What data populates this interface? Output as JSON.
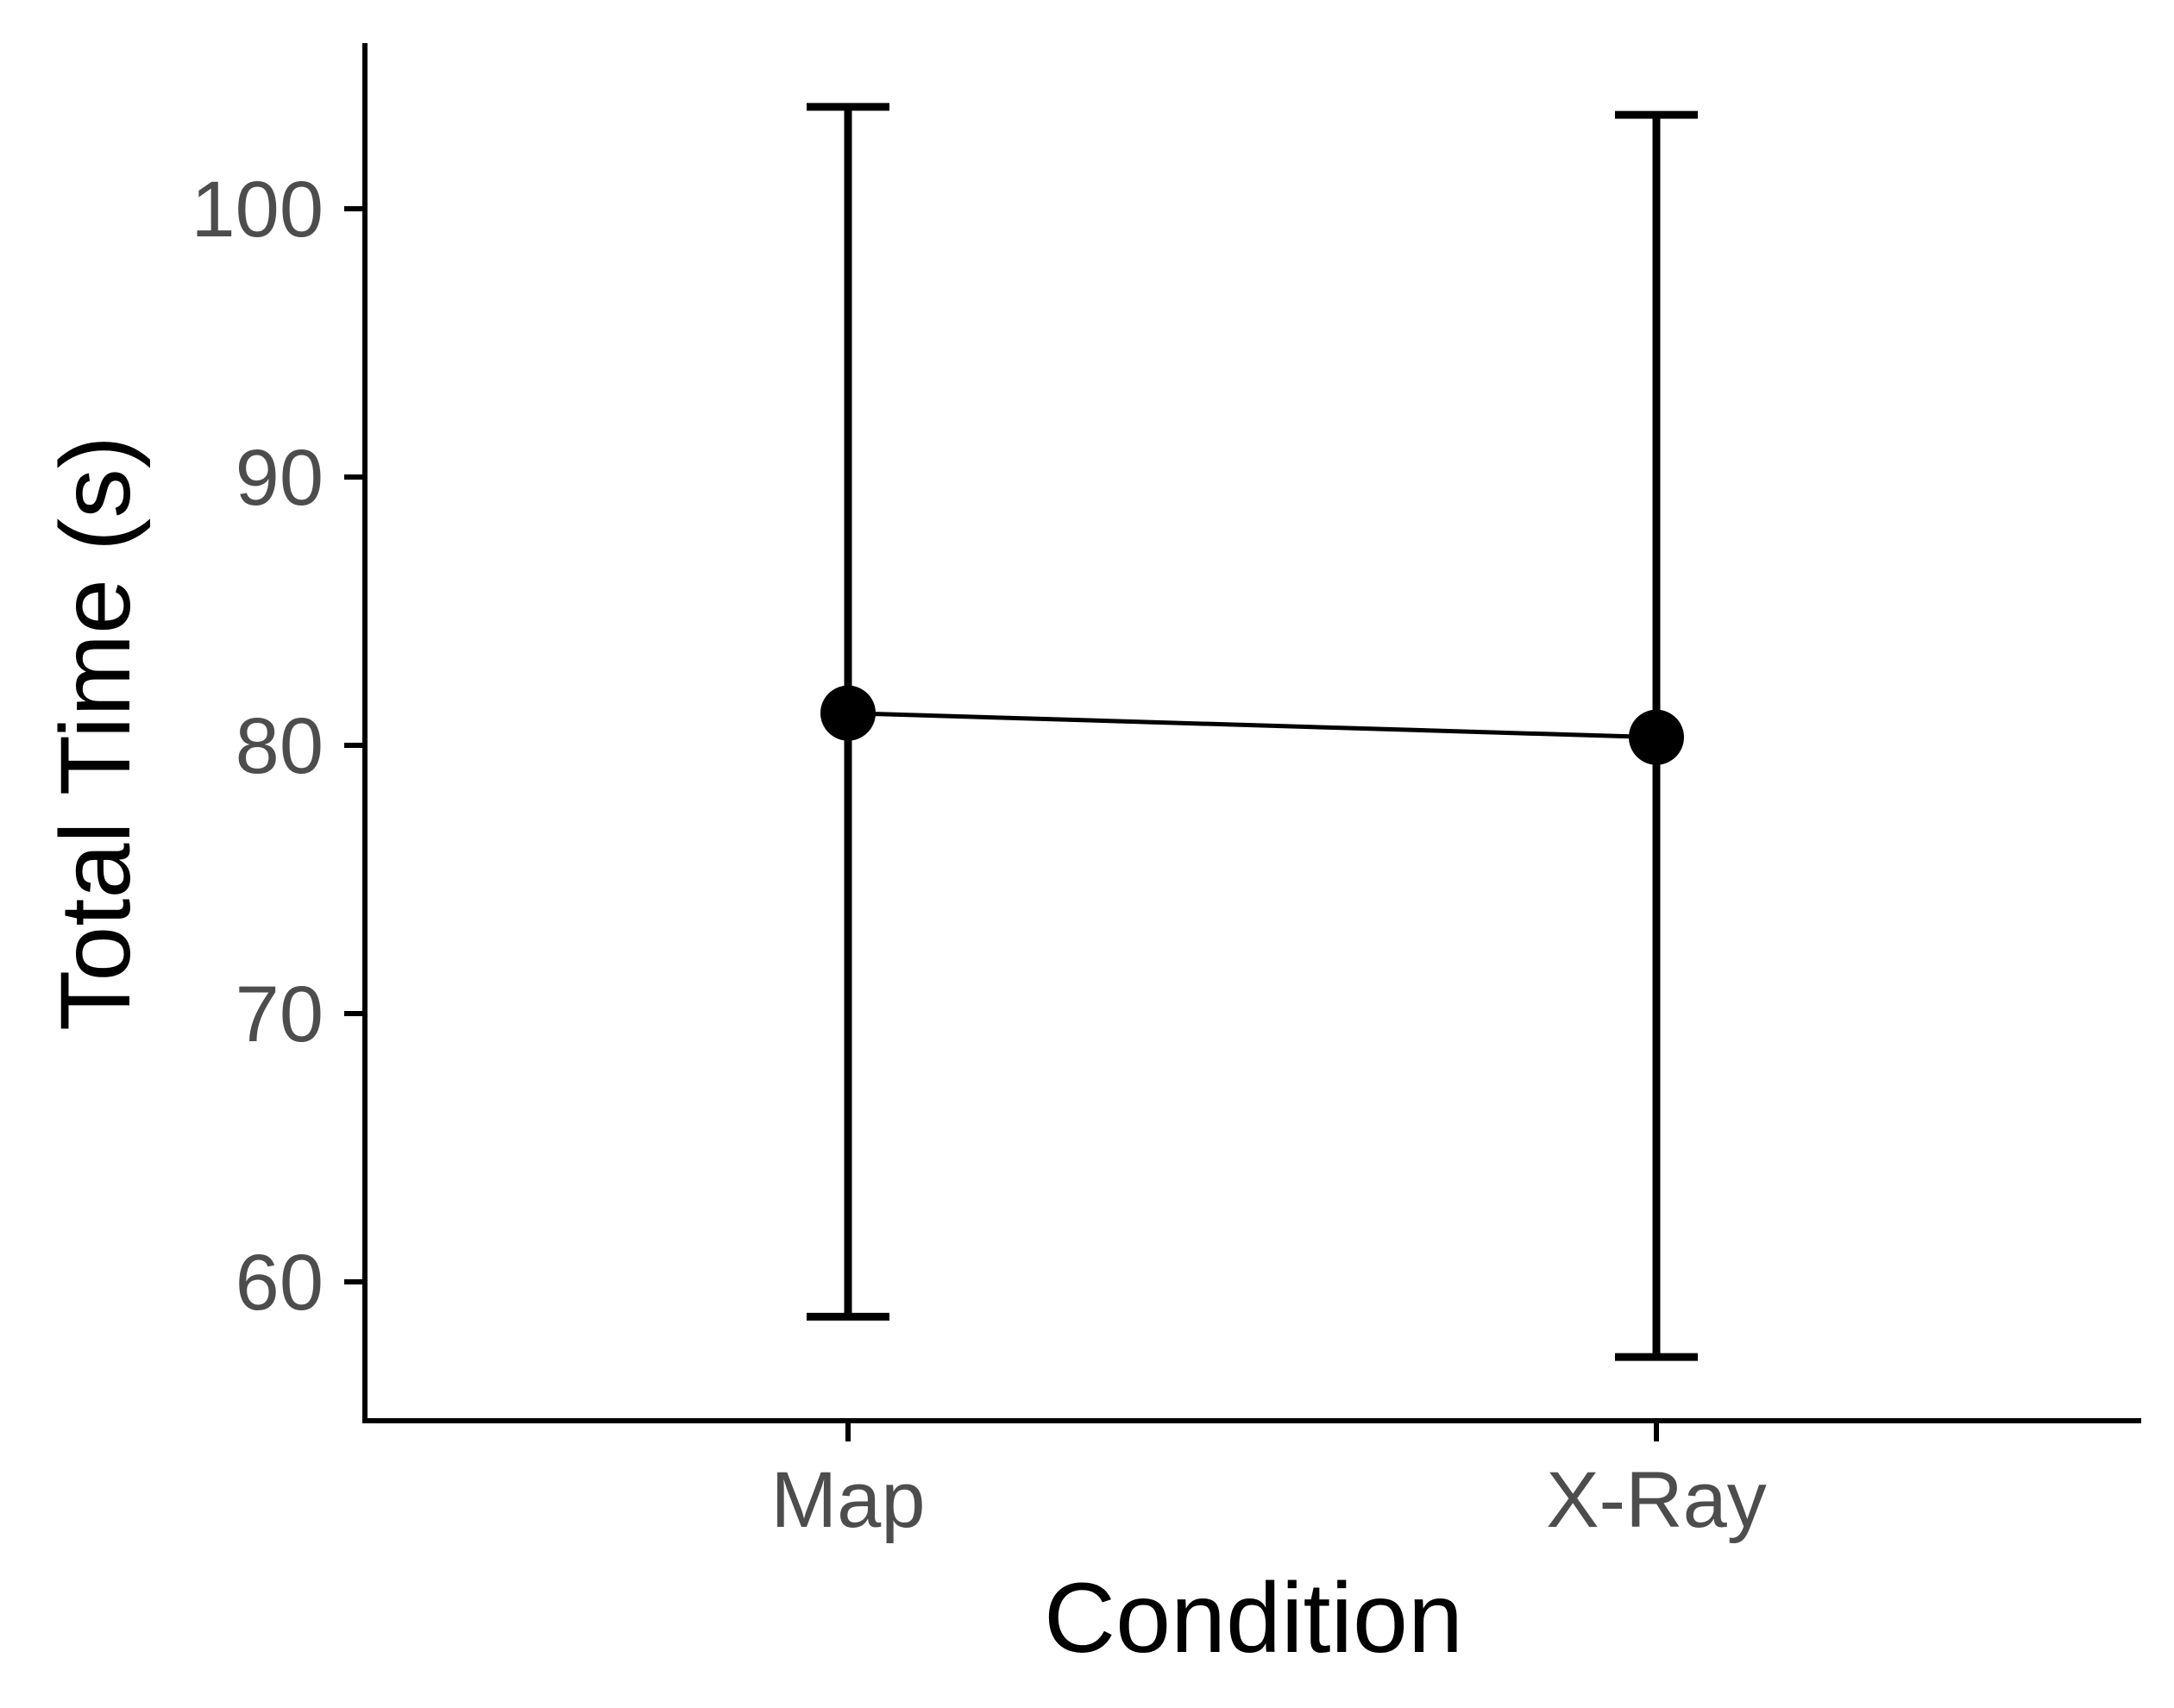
{
  "chart_data": {
    "type": "line",
    "title": "",
    "xlabel": "Condition",
    "ylabel": "Total Time (s)",
    "categories": [
      "Map",
      "X-Ray"
    ],
    "series": [
      {
        "values": [
          81.2,
          80.3
        ],
        "error_low": [
          58.7,
          57.2
        ],
        "error_high": [
          103.8,
          103.5
        ]
      }
    ],
    "ylim": [
      55,
      106
    ],
    "yticks": [
      60,
      70,
      80,
      90,
      100
    ],
    "grid": false,
    "legend": "none",
    "colors": {
      "line": "#000000",
      "point": "#000000",
      "tick_label": "#4d4d4d",
      "axis": "#000000"
    }
  }
}
